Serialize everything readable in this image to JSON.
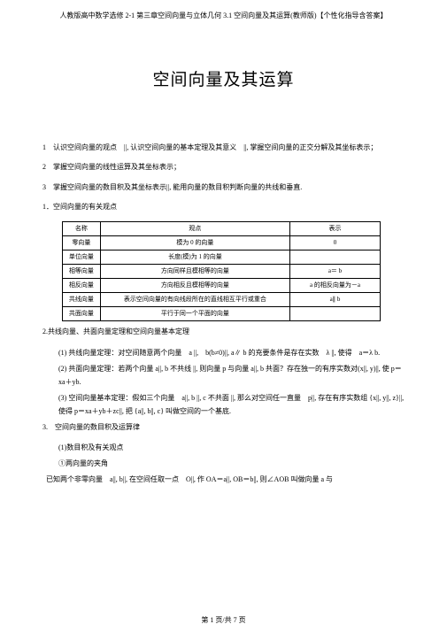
{
  "header": "人教版高中数学选修 2-1 第三章空间向量与立体几何 3.1 空间向量及其运算(教师版)【个性化指导含答案】",
  "title": "空间向量及其运算",
  "p1": "1　认识空间向量的观点　||, 认识空间向量的基本定理及其意义　||, 掌握空间向量的正交分解及其坐标表示；",
  "p2": "2　掌握空间向量的线性运算及其坐标表示；",
  "p3": "3　掌握空间向量的数目积及其坐标表示||, 能用向量的数目积判断向量的共线和垂直.",
  "s1": "1．空间向量的有关观点",
  "table": {
    "h1": "名称",
    "h2": "观点",
    "h3": "表示",
    "r1c1": "零向量",
    "r1c2": "模为 0 的向量",
    "r1c3": "0",
    "r2c1": "单位向量",
    "r2c2": "长度(模)为 1 的向量",
    "r2c3": "",
    "r3c1": "相等向量",
    "r3c2": "方向同样且模相等的向量",
    "r3c3": "a＝ b",
    "r4c1": "相反向量",
    "r4c2": "方向相反且模相等的向量",
    "r4c3": "a 的相反向量为－a",
    "r5c1": "共线向量",
    "r5c2": "表示空间向量的有向线段所在的直线相互平行或重合",
    "r5c3": "a∥ b",
    "r6c1": "共面向量",
    "r6c2": "平行于同一个平面的向量",
    "r6c3": ""
  },
  "s2": "2.共线向量、共面向量定理和空间向量基本定理",
  "s2_1": "(1) 共线向量定理：对空间随意两个向量　a ||,　b(b≠0)||, a∥ b 的充要条件是存在实数　λ ||, 使得　a＝λ b.",
  "s2_2": "(2) 共面向量定理：若两个向量 a||, b 不共线 ||, 则向量 p 与向量 a||, b 共面？存在独一的有序实数对(x||, y)||, 使 p＝xa＋yb.",
  "s2_3": "(3) 空间向量基本定理：假如三个向量　a||, b ||, c 不共面 ||, 那么对空间任一直量　p||, 存在有序实数组 {x||, y||, z}||, 使得 p＝xa＋yb＋zc||, 把 {a||, b||, c} 叫做空间的一个基底.",
  "s3": "3.　空间向量的数目积及运算律",
  "s3_1": "(1)数目积及有关观点",
  "s3_1_1": "①两向量的夹角",
  "s3_1_2": "已知两个非零向量　a||, b||, 在空间任取一点　O||, 作 OA＝a||, OB＝b||, 则∠AOB 叫做向量 a 与",
  "footer": "第 1 页/共 7 页"
}
